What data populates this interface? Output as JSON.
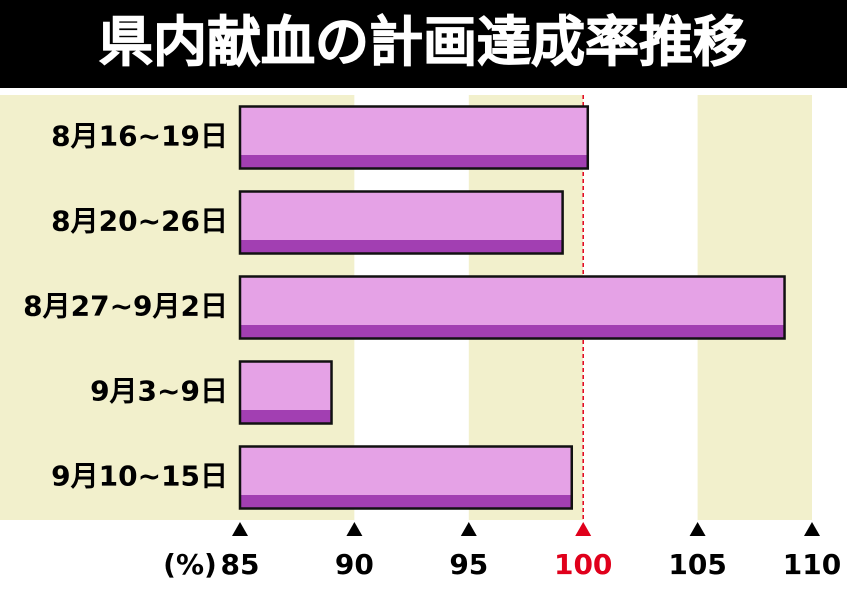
{
  "chart_data": {
    "type": "hbar",
    "title": "県内献血の計画達成率推移",
    "unit_label": "(%)",
    "categories": [
      "8月16~19日",
      "8月20~26日",
      "8月27~9月2日",
      "9月3~9日",
      "9月10~15日"
    ],
    "values": [
      100.2,
      99.1,
      108.8,
      89.0,
      99.5
    ],
    "color": "#e5a2e6",
    "shade_color": "#a23fb2",
    "xlim": [
      85,
      110
    ],
    "xticks": [
      85,
      90,
      95,
      100,
      105,
      110
    ],
    "reference_line": 100,
    "reference_color": "#e0001b",
    "band_colors": [
      "#f2f0cc",
      "#ffffff"
    ]
  }
}
